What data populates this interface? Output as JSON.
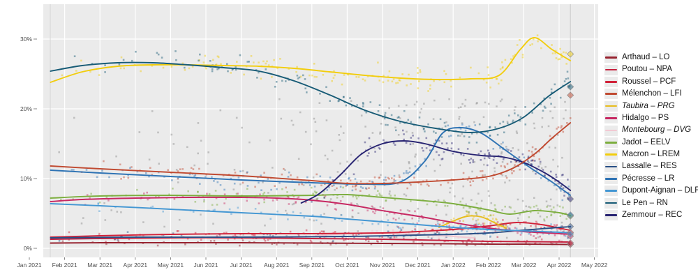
{
  "chart_data": {
    "type": "scatter+line",
    "title": "",
    "x_axis": {
      "tick_labels": [
        "Jan 2021",
        "Feb 2021",
        "Mar 2021",
        "Apr 2021",
        "May 2021",
        "Jun 2021",
        "Jul 2021",
        "Aug 2021",
        "Sep 2021",
        "Oct 2021",
        "Nov 2021",
        "Dec 2021",
        "Jan 2022",
        "Feb 2022",
        "Mar 2022",
        "Apr 2022",
        "May 2022"
      ]
    },
    "y_axis": {
      "tick_labels": [
        "0%",
        "10%",
        "20%",
        "30%"
      ],
      "tick_values": [
        0,
        10,
        20,
        30
      ],
      "range": [
        0,
        32
      ]
    },
    "grid": true,
    "legend_position": "right",
    "election_day_x": 15.32,
    "colors": {
      "panel_background": "#ebebeb",
      "gridline": "#ffffff",
      "axis_text": "#4d4d4d",
      "election_line": "#c9c9c9",
      "other_polls_gray": "#7a7a7a"
    },
    "series": [
      {
        "name": "Arthaud – LO",
        "slug": "arthaud-lo",
        "color": "#96212e",
        "italic": false,
        "z": 1,
        "spread": 0.35,
        "points": 60,
        "result": 0.56,
        "trend": [
          [
            0.6,
            0.75
          ],
          [
            2,
            0.8
          ],
          [
            4,
            0.8
          ],
          [
            6,
            0.8
          ],
          [
            8,
            0.75
          ],
          [
            10,
            0.7
          ],
          [
            12,
            0.65
          ],
          [
            13,
            0.6
          ],
          [
            14,
            0.6
          ],
          [
            15.3,
            0.55
          ]
        ]
      },
      {
        "name": "Poutou – NPA",
        "slug": "poutou-npa",
        "color": "#c6203e",
        "italic": false,
        "z": 2,
        "spread": 0.4,
        "points": 65,
        "result": 0.77,
        "trend": [
          [
            0.6,
            1.3
          ],
          [
            2,
            1.4
          ],
          [
            4,
            1.5
          ],
          [
            6,
            1.5
          ],
          [
            8,
            1.4
          ],
          [
            10,
            1.3
          ],
          [
            12,
            1.1
          ],
          [
            13,
            1.0
          ],
          [
            14,
            0.95
          ],
          [
            15.3,
            0.9
          ]
        ]
      },
      {
        "name": "Roussel – PCF",
        "slug": "roussel-pcf",
        "color": "#d12239",
        "italic": false,
        "z": 3,
        "spread": 0.5,
        "points": 95,
        "result": 2.28,
        "trend": [
          [
            0.6,
            1.6
          ],
          [
            2,
            1.8
          ],
          [
            4,
            2.0
          ],
          [
            6,
            2.1
          ],
          [
            8,
            2.1
          ],
          [
            10,
            2.2
          ],
          [
            11,
            2.4
          ],
          [
            12,
            2.7
          ],
          [
            13,
            3.2
          ],
          [
            13.8,
            3.7
          ],
          [
            14.5,
            3.4
          ],
          [
            15,
            2.9
          ],
          [
            15.3,
            2.6
          ]
        ]
      },
      {
        "name": "Mélenchon – LFI",
        "slug": "melenchon-lfi",
        "color": "#c04a31",
        "italic": false,
        "z": 13,
        "spread": 1.1,
        "points": 140,
        "result": 21.95,
        "trend": [
          [
            0.6,
            11.8
          ],
          [
            2,
            11.4
          ],
          [
            4,
            10.9
          ],
          [
            6,
            10.4
          ],
          [
            8,
            9.7
          ],
          [
            9,
            9.3
          ],
          [
            10,
            9.3
          ],
          [
            11,
            9.5
          ],
          [
            12,
            9.8
          ],
          [
            13,
            10.3
          ],
          [
            13.7,
            11.5
          ],
          [
            14.3,
            13.5
          ],
          [
            14.8,
            15.8
          ],
          [
            15.32,
            18.0
          ]
        ]
      },
      {
        "name": "Taubira – PRG",
        "slug": "taubira-prg",
        "color": "#e7bd1e",
        "italic": true,
        "z": 4,
        "spread": 0.7,
        "points": 40,
        "result": null,
        "trend": [
          [
            11.6,
            3.0
          ],
          [
            12,
            3.9
          ],
          [
            12.4,
            4.6
          ],
          [
            12.8,
            4.5
          ],
          [
            13.2,
            3.6
          ],
          [
            13.5,
            2.9
          ]
        ]
      },
      {
        "name": "Hidalgo – PS",
        "slug": "hidalgo-ps",
        "color": "#c72862",
        "italic": false,
        "z": 6,
        "spread": 0.8,
        "points": 110,
        "result": 1.75,
        "trend": [
          [
            0.6,
            6.7
          ],
          [
            1.5,
            7.0
          ],
          [
            3,
            7.2
          ],
          [
            4.5,
            7.3
          ],
          [
            6,
            7.3
          ],
          [
            7,
            7.2
          ],
          [
            8,
            6.9
          ],
          [
            9,
            6.3
          ],
          [
            10,
            5.4
          ],
          [
            11,
            4.6
          ],
          [
            12,
            3.7
          ],
          [
            13,
            2.9
          ],
          [
            14,
            2.4
          ],
          [
            15,
            2.1
          ],
          [
            15.32,
            2.0
          ]
        ]
      },
      {
        "name": "Montebourg – DVG",
        "slug": "montebourg-dvg",
        "color": "#f2c9d3",
        "italic": true,
        "z": 0,
        "spread": 0.45,
        "points": 30,
        "result": null,
        "trend": [
          [
            8.1,
            1.8
          ],
          [
            9,
            2.1
          ],
          [
            10,
            2.2
          ],
          [
            11,
            2.0
          ],
          [
            12,
            1.7
          ],
          [
            12.6,
            1.5
          ]
        ]
      },
      {
        "name": "Jadot – EELV",
        "slug": "jadot-eelv",
        "color": "#7cae3e",
        "italic": false,
        "z": 7,
        "spread": 0.9,
        "points": 120,
        "result": 4.63,
        "trend": [
          [
            0.6,
            7.2
          ],
          [
            2,
            7.5
          ],
          [
            4,
            7.6
          ],
          [
            6,
            7.5
          ],
          [
            8,
            7.6
          ],
          [
            9,
            7.7
          ],
          [
            10,
            7.3
          ],
          [
            11,
            6.9
          ],
          [
            12,
            6.4
          ],
          [
            13,
            5.5
          ],
          [
            13.6,
            4.9
          ],
          [
            14.3,
            5.4
          ],
          [
            15,
            5.1
          ],
          [
            15.32,
            4.7
          ]
        ]
      },
      {
        "name": "Macron – LREM",
        "slug": "macron-lrem",
        "color": "#f2cd0d",
        "italic": false,
        "z": 10,
        "spread": 1.2,
        "points": 150,
        "result": 27.85,
        "trend": [
          [
            0.6,
            23.8
          ],
          [
            1.5,
            25.3
          ],
          [
            2.5,
            26.1
          ],
          [
            3.5,
            26.3
          ],
          [
            4.5,
            26.3
          ],
          [
            5.5,
            26.2
          ],
          [
            6.5,
            26.1
          ],
          [
            7.5,
            25.8
          ],
          [
            8.5,
            25.3
          ],
          [
            9.5,
            24.8
          ],
          [
            10.5,
            24.4
          ],
          [
            11.5,
            24.2
          ],
          [
            12.5,
            24.3
          ],
          [
            13.3,
            24.8
          ],
          [
            13.9,
            28.5
          ],
          [
            14.3,
            30.2
          ],
          [
            14.8,
            28.5
          ],
          [
            15.32,
            26.9
          ]
        ]
      },
      {
        "name": "Lassalle – RES",
        "slug": "lassalle-res",
        "color": "#274e85",
        "italic": false,
        "z": 5,
        "spread": 0.5,
        "points": 60,
        "result": 3.13,
        "trend": [
          [
            0.6,
            1.5
          ],
          [
            3,
            1.6
          ],
          [
            6,
            1.6
          ],
          [
            9,
            1.7
          ],
          [
            11,
            1.9
          ],
          [
            12,
            2.0
          ],
          [
            13,
            2.2
          ],
          [
            14,
            2.6
          ],
          [
            15,
            3.0
          ],
          [
            15.32,
            3.1
          ]
        ]
      },
      {
        "name": "Pécresse – LR",
        "slug": "pecresse-lr",
        "color": "#2e73b4",
        "italic": false,
        "z": 8,
        "spread": 1.0,
        "points": 130,
        "result": 4.78,
        "trend": [
          [
            0.6,
            11.2
          ],
          [
            2,
            10.8
          ],
          [
            4,
            10.3
          ],
          [
            6,
            9.8
          ],
          [
            8,
            9.4
          ],
          [
            9.5,
            9.2
          ],
          [
            10.5,
            9.5
          ],
          [
            11.2,
            12.5
          ],
          [
            11.7,
            16.5
          ],
          [
            12.2,
            17.3
          ],
          [
            12.8,
            16.5
          ],
          [
            13.5,
            14.0
          ],
          [
            14.2,
            11.5
          ],
          [
            14.8,
            9.5
          ],
          [
            15.32,
            7.6
          ]
        ]
      },
      {
        "name": "Dupont-Aignan – DLF",
        "slug": "dupont-aignan-dlf",
        "color": "#4497d3",
        "italic": false,
        "z": 9,
        "spread": 0.7,
        "points": 90,
        "result": 2.06,
        "trend": [
          [
            0.6,
            6.4
          ],
          [
            2,
            6.1
          ],
          [
            4,
            5.6
          ],
          [
            6,
            5.1
          ],
          [
            8,
            4.6
          ],
          [
            9,
            4.2
          ],
          [
            10,
            3.8
          ],
          [
            11,
            3.4
          ],
          [
            12,
            3.0
          ],
          [
            13,
            2.7
          ],
          [
            14,
            2.5
          ],
          [
            15,
            2.3
          ],
          [
            15.32,
            2.2
          ]
        ]
      },
      {
        "name": "Le Pen – RN",
        "slug": "le-pen-rn",
        "color": "#175b76",
        "italic": false,
        "z": 12,
        "spread": 1.3,
        "points": 150,
        "result": 23.15,
        "trend": [
          [
            0.6,
            25.4
          ],
          [
            1.5,
            26.2
          ],
          [
            2.5,
            26.6
          ],
          [
            3.5,
            26.6
          ],
          [
            4.5,
            26.3
          ],
          [
            5.5,
            25.9
          ],
          [
            6.5,
            25.4
          ],
          [
            7.5,
            24.0
          ],
          [
            8.5,
            22.0
          ],
          [
            9.5,
            19.8
          ],
          [
            10.5,
            18.2
          ],
          [
            11.5,
            17.2
          ],
          [
            12.5,
            16.6
          ],
          [
            13.3,
            17.2
          ],
          [
            14,
            18.8
          ],
          [
            14.7,
            21.8
          ],
          [
            15.32,
            23.9
          ]
        ]
      },
      {
        "name": "Zemmour – REC",
        "slug": "zemmour-rec",
        "color": "#272372",
        "italic": false,
        "z": 11,
        "spread": 1.2,
        "points": 120,
        "result": 7.07,
        "trend": [
          [
            7.7,
            6.5
          ],
          [
            8.2,
            7.8
          ],
          [
            8.8,
            10.5
          ],
          [
            9.4,
            13.5
          ],
          [
            10,
            15.0
          ],
          [
            10.6,
            15.4
          ],
          [
            11.2,
            15.0
          ],
          [
            12,
            13.9
          ],
          [
            12.8,
            13.3
          ],
          [
            13.4,
            13.1
          ],
          [
            14,
            12.3
          ],
          [
            14.6,
            10.8
          ],
          [
            15,
            9.5
          ],
          [
            15.32,
            8.3
          ]
        ]
      }
    ],
    "other_polls": {
      "count": 320,
      "x_range": [
        0.6,
        15.2
      ],
      "y_range": [
        1.5,
        21.5
      ]
    },
    "result_marker": {
      "shape": "diamond",
      "x": 15.32
    }
  }
}
